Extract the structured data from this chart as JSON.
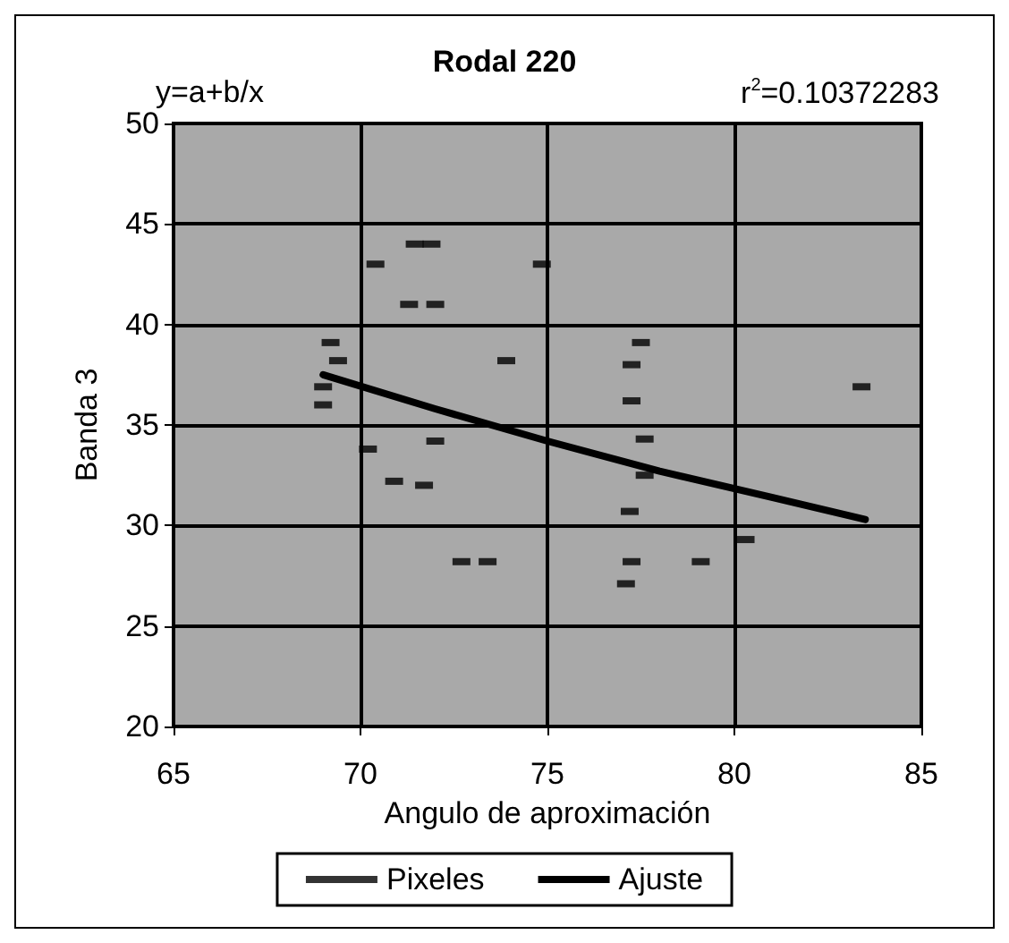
{
  "chart_data": {
    "type": "scatter",
    "title": "Rodal 220",
    "xlabel": "Angulo de aproximación",
    "ylabel": "Banda 3",
    "annotations": [
      "y=a+b/x",
      "r$^{2}$=0.10372283"
    ],
    "xlim": [
      65,
      85
    ],
    "xticks": [
      65,
      70,
      75,
      80,
      85
    ],
    "ylim": [
      20,
      50
    ],
    "yticks": [
      20,
      25,
      30,
      35,
      40,
      45,
      50
    ],
    "grid": true,
    "legend": "bottom",
    "series": [
      {
        "name": "Pixeles",
        "color": "#000000",
        "x": [
          71.45,
          71.9,
          70.4,
          71.3,
          72.0,
          69.2,
          69.4,
          69.0,
          69.0,
          73.9,
          70.2,
          72.0,
          70.9,
          71.7,
          72.7,
          73.4,
          74.85,
          77.5,
          77.25,
          77.25,
          77.6,
          77.6,
          77.2,
          77.25,
          79.1,
          77.1,
          83.4,
          80.3
        ],
        "values": [
          44,
          44,
          43,
          41,
          41,
          39.1,
          38.2,
          36.9,
          36,
          38.2,
          33.8,
          34.2,
          32.2,
          32,
          28.2,
          28.2,
          43,
          39.1,
          38,
          36.2,
          34.3,
          32.5,
          30.7,
          28.2,
          28.2,
          27.1,
          36.9,
          29.3
        ]
      },
      {
        "name": "Ajuste",
        "type": "line",
        "color": "#000000",
        "marker": "none",
        "x": [
          69,
          72,
          75,
          78,
          81,
          83.5
        ],
        "values": [
          37.5,
          35.8,
          34.2,
          32.7,
          31.4,
          30.3
        ]
      }
    ]
  }
}
